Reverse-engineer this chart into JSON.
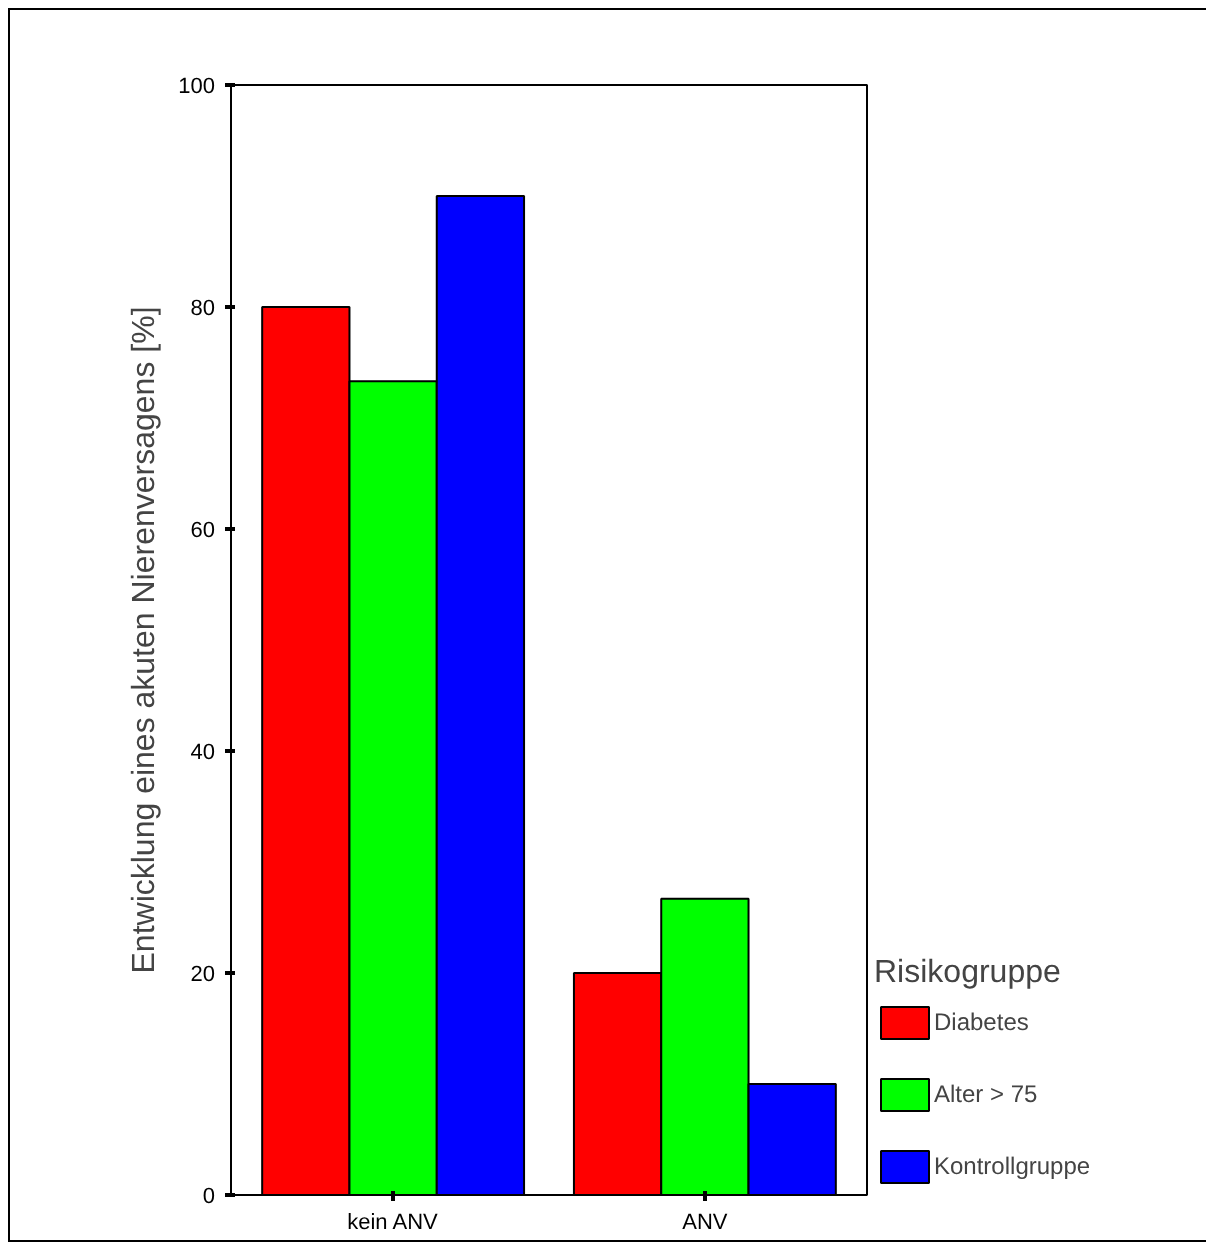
{
  "chart_data": {
    "type": "bar",
    "ylabel": "Entwicklung eines akuten Nierenversagens [%]",
    "legend_title": "Risikogruppe",
    "categories": [
      "kein ANV",
      "ANV"
    ],
    "series": [
      {
        "name": "Diabetes",
        "color": "#ff0000",
        "values": [
          80,
          20
        ]
      },
      {
        "name": "Alter > 75",
        "color": "#00ff00",
        "values": [
          73.3,
          26.7
        ]
      },
      {
        "name": "Kontrollgruppe",
        "color": "#0000ff",
        "values": [
          90,
          10
        ]
      }
    ],
    "ylim": [
      0,
      100
    ],
    "yticks": [
      0,
      20,
      40,
      60,
      80,
      100
    ],
    "grid": false,
    "legend": "right"
  }
}
